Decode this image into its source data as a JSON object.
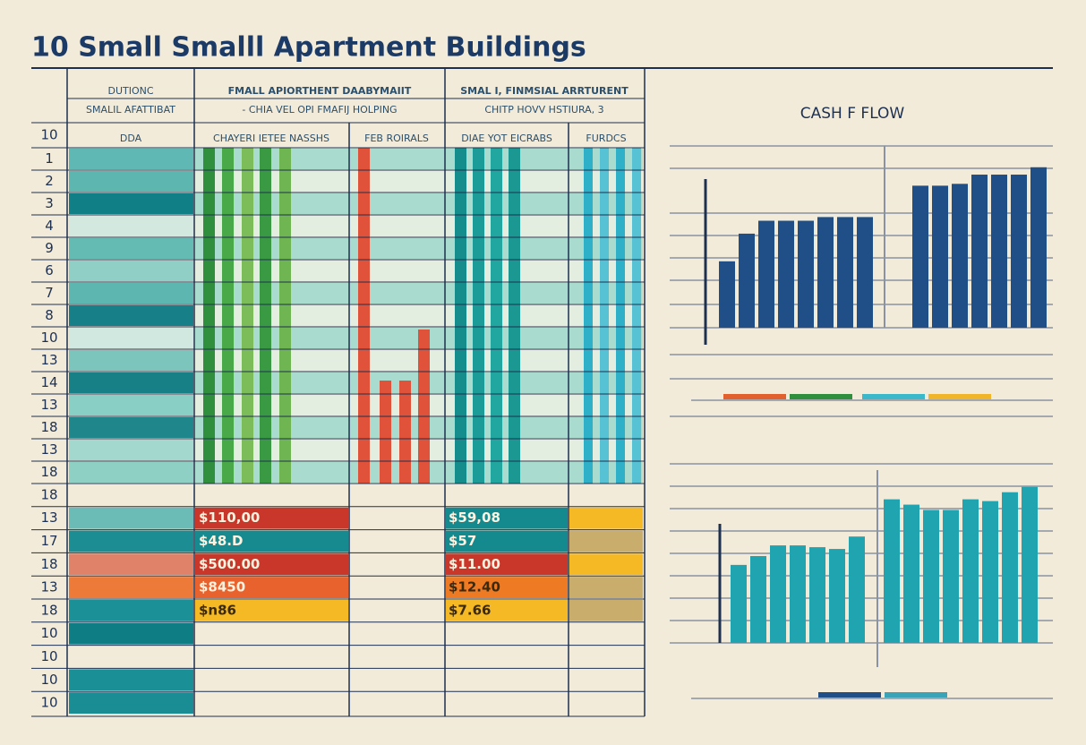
{
  "header": {
    "title": "10 Small Smalll Apartment Buildings"
  },
  "table": {
    "header_cells": [
      [
        "DUTIONC",
        "SMALIL AFATTIBAT"
      ],
      [
        "FMALL APIORTHENT DAABYMAIIT",
        "- CHIA VEL OPI FMAFIJ HOLPING"
      ],
      [
        "SMAL I, FINMSIAL ARRTURENT",
        "CHITP HOVV HSTIURA, 3"
      ]
    ],
    "subheaders": [
      "DDA",
      "CHAYERI IETEE NASSHS",
      "FEB ROIRALS",
      "DIAE YOT EICRABS",
      "FURDCS"
    ],
    "row_labels": [
      "10",
      "1",
      "2",
      "3",
      "4",
      "9",
      "6",
      "7",
      "8",
      "10",
      "13",
      "14",
      "13",
      "18",
      "13",
      "18",
      "18",
      "13",
      "17",
      "18",
      "13",
      "18",
      "10",
      "10",
      "10",
      "10"
    ],
    "amounts_a": [
      "$110,00",
      "$48.D",
      "$500.00",
      "$8450",
      "$n86"
    ],
    "amounts_b": [
      "$59,08",
      "$57",
      "$11.00",
      "$12.40",
      "$7.66"
    ]
  },
  "chart_data": [
    {
      "type": "bar",
      "title": "CASH F FLOW",
      "color": "#1f4f86",
      "ylim": [
        0,
        100
      ],
      "values": [
        36,
        51,
        58,
        58,
        58,
        60,
        60,
        60,
        77,
        77,
        78,
        83,
        83,
        83,
        87
      ]
    },
    {
      "type": "bar",
      "color": "#1fa4b0",
      "ylim": [
        0,
        100
      ],
      "values": [
        44,
        49,
        55,
        55,
        54,
        53,
        60,
        81,
        78,
        75,
        75,
        81,
        80,
        85,
        88
      ]
    }
  ]
}
